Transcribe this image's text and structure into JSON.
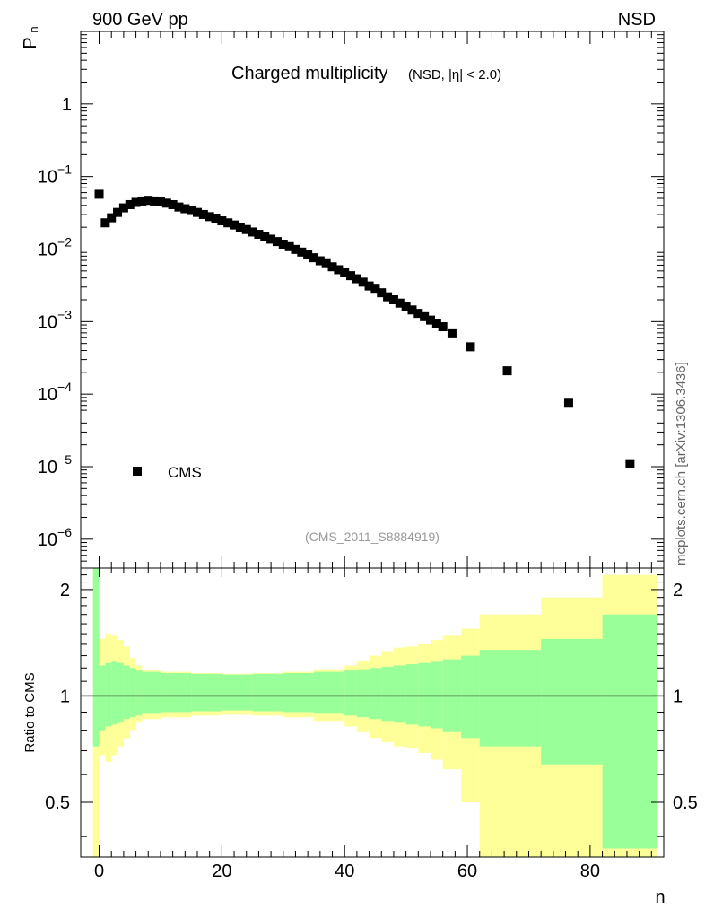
{
  "header": {
    "left": "900 GeV pp",
    "right": "NSD"
  },
  "side_label": "mcplots.cern.ch [arXiv:1306.3436]",
  "colors": {
    "yellow_band": "#ffff99",
    "green_band": "#99ff99",
    "marker": "#000000",
    "frame": "#000000",
    "watermark": "#999999",
    "side_label": "#666666"
  },
  "chart_data": [
    {
      "type": "scatter",
      "title": "Charged multiplicity",
      "subtitle": "(NSD, |η| < 2.0)",
      "ylabel": "P",
      "ylabel_sub": "n",
      "xlabel": "n",
      "yscale": "log",
      "xlim": [
        -3,
        92
      ],
      "ylim": [
        4e-07,
        10
      ],
      "y_ticks": [
        {
          "value": 1e-06,
          "base": "10",
          "exp": "−6"
        },
        {
          "value": 1e-05,
          "base": "10",
          "exp": "−5"
        },
        {
          "value": 0.0001,
          "base": "10",
          "exp": "−4"
        },
        {
          "value": 0.001,
          "base": "10",
          "exp": "−3"
        },
        {
          "value": 0.01,
          "base": "10",
          "exp": "−2"
        },
        {
          "value": 0.1,
          "base": "10",
          "exp": "−1"
        },
        {
          "value": 1,
          "base": "1",
          "exp": ""
        }
      ],
      "legend": {
        "entries": [
          "CMS"
        ],
        "position": "bottom-left"
      },
      "watermark": "(CMS_2011_S8884919)",
      "series": [
        {
          "name": "CMS",
          "marker": "square",
          "x": [
            0,
            1,
            2,
            3,
            4,
            5,
            6,
            7,
            8,
            9,
            10,
            11,
            12,
            13,
            14,
            15,
            16,
            17,
            18,
            19,
            20,
            21,
            22,
            23,
            24,
            25,
            26,
            27,
            28,
            29,
            30,
            31,
            32,
            33,
            34,
            35,
            36,
            37,
            38,
            39,
            40,
            41,
            42,
            43,
            44,
            45,
            46,
            47,
            48,
            49,
            50,
            51,
            52,
            53,
            54,
            55,
            56,
            57.5,
            60.5,
            66.5,
            76.5,
            86.5
          ],
          "y": [
            0.057,
            0.023,
            0.027,
            0.032,
            0.037,
            0.041,
            0.044,
            0.046,
            0.047,
            0.046,
            0.045,
            0.043,
            0.041,
            0.038,
            0.036,
            0.034,
            0.032,
            0.03,
            0.028,
            0.026,
            0.0245,
            0.023,
            0.0215,
            0.02,
            0.0186,
            0.0172,
            0.016,
            0.0148,
            0.0137,
            0.0127,
            0.0117,
            0.0108,
            0.0099,
            0.0091,
            0.0083,
            0.0076,
            0.0069,
            0.0063,
            0.0057,
            0.0052,
            0.0047,
            0.0043,
            0.0039,
            0.0035,
            0.0031,
            0.0028,
            0.0025,
            0.0022,
            0.002,
            0.0018,
            0.0016,
            0.00145,
            0.0013,
            0.00117,
            0.00105,
            0.00094,
            0.00085,
            0.00068,
            0.00045,
            0.00021,
            7.5e-05,
            1.1e-05
          ]
        }
      ]
    },
    {
      "type": "area",
      "xlabel": "n",
      "ylabel": "Ratio to CMS",
      "xlim": [
        -3,
        92
      ],
      "ylim": [
        0.35,
        2.3
      ],
      "x_ticks": [
        0,
        20,
        40,
        60,
        80
      ],
      "y_ticks": [
        0.5,
        1,
        2
      ],
      "reference_line": 1,
      "bands": {
        "bins": [
          [
            -1,
            0
          ],
          [
            0,
            1
          ],
          [
            1,
            2
          ],
          [
            2,
            3
          ],
          [
            3,
            4
          ],
          [
            4,
            5
          ],
          [
            5,
            6
          ],
          [
            6,
            7
          ],
          [
            7,
            10
          ],
          [
            10,
            15
          ],
          [
            15,
            20
          ],
          [
            20,
            25
          ],
          [
            25,
            30
          ],
          [
            30,
            35
          ],
          [
            35,
            40
          ],
          [
            40,
            42
          ],
          [
            42,
            44
          ],
          [
            44,
            46
          ],
          [
            46,
            48
          ],
          [
            48,
            50
          ],
          [
            50,
            52
          ],
          [
            52,
            54
          ],
          [
            54,
            56
          ],
          [
            56,
            59
          ],
          [
            59,
            62
          ],
          [
            62,
            72
          ],
          [
            72,
            82
          ],
          [
            82,
            91
          ]
        ],
        "green_upper": [
          2.3,
          1.22,
          1.24,
          1.25,
          1.24,
          1.22,
          1.2,
          1.18,
          1.17,
          1.16,
          1.155,
          1.15,
          1.155,
          1.16,
          1.17,
          1.18,
          1.19,
          1.2,
          1.21,
          1.22,
          1.23,
          1.24,
          1.25,
          1.27,
          1.3,
          1.35,
          1.45,
          1.7
        ],
        "green_lower": [
          0.72,
          0.8,
          0.82,
          0.83,
          0.84,
          0.86,
          0.87,
          0.88,
          0.89,
          0.9,
          0.905,
          0.91,
          0.905,
          0.9,
          0.89,
          0.88,
          0.87,
          0.86,
          0.85,
          0.84,
          0.83,
          0.82,
          0.81,
          0.79,
          0.76,
          0.72,
          0.64,
          0.37
        ],
        "yellow_upper": [
          2.3,
          1.45,
          1.5,
          1.48,
          1.44,
          1.38,
          1.28,
          1.22,
          1.18,
          1.17,
          1.16,
          1.155,
          1.16,
          1.17,
          1.19,
          1.22,
          1.26,
          1.3,
          1.34,
          1.37,
          1.38,
          1.4,
          1.44,
          1.48,
          1.55,
          1.7,
          1.9,
          2.2
        ],
        "yellow_lower": [
          0.3,
          0.68,
          0.65,
          0.68,
          0.72,
          0.76,
          0.8,
          0.84,
          0.86,
          0.87,
          0.88,
          0.885,
          0.88,
          0.87,
          0.85,
          0.82,
          0.79,
          0.76,
          0.74,
          0.72,
          0.71,
          0.69,
          0.66,
          0.62,
          0.5,
          0.3,
          0.3,
          0.3
        ]
      }
    }
  ]
}
